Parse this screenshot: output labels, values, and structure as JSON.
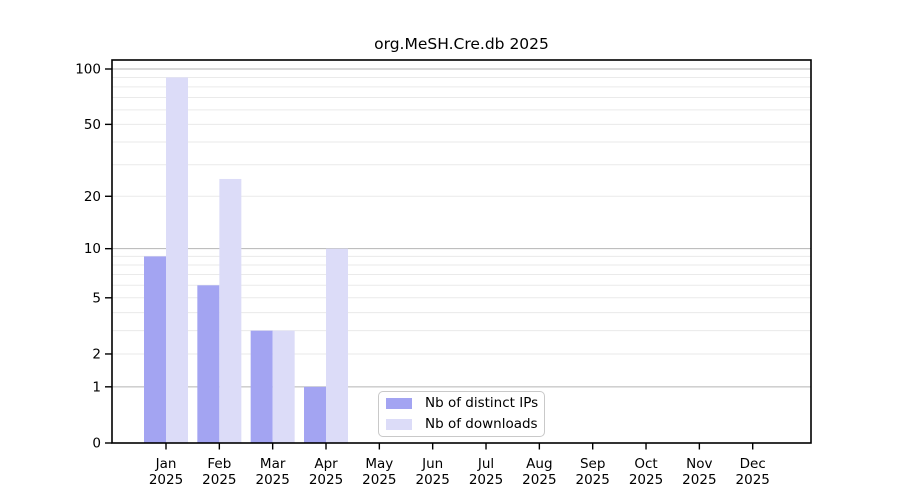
{
  "title": "org.MeSH.Cre.db 2025",
  "legend": {
    "items": [
      {
        "label": "Nb of distinct IPs",
        "color": "#a3a4f2"
      },
      {
        "label": "Nb of downloads",
        "color": "#dcdcf8"
      }
    ]
  },
  "chart_data": {
    "type": "bar",
    "title": "org.MeSH.Cre.db 2025",
    "categories": [
      "Jan",
      "Feb",
      "Mar",
      "Apr",
      "May",
      "Jun",
      "Jul",
      "Aug",
      "Sep",
      "Oct",
      "Nov",
      "Dec"
    ],
    "category_year": "2025",
    "series": [
      {
        "name": "Nb of distinct IPs",
        "color": "#a3a4f2",
        "values": [
          9,
          6,
          3,
          1,
          0,
          0,
          0,
          0,
          0,
          0,
          0,
          0
        ]
      },
      {
        "name": "Nb of downloads",
        "color": "#dcdcf8",
        "values": [
          90,
          25,
          3,
          10,
          0,
          0,
          0,
          0,
          0,
          0,
          0,
          0
        ]
      }
    ],
    "xlabel": "",
    "ylabel": "",
    "yscale": "log1p",
    "ylim": [
      0,
      113
    ],
    "yticks": [
      0,
      1,
      2,
      5,
      10,
      20,
      50,
      100
    ],
    "major_gridlines": [
      1,
      10,
      100
    ],
    "minor_gridlines": [
      2,
      3,
      4,
      5,
      6,
      7,
      8,
      9,
      20,
      30,
      40,
      50,
      60,
      70,
      80,
      90
    ],
    "grid": true,
    "legend_position": "bottom-center"
  },
  "colors": {
    "bar_distinct_ips": "#a3a4f2",
    "bar_downloads": "#dcdcf8",
    "major_grid": "#b5b5b5",
    "minor_grid": "#eaeaea",
    "axis": "#000000",
    "tick_label": "#000000",
    "legend_border": "#c9c9c9",
    "background": "#ffffff"
  }
}
